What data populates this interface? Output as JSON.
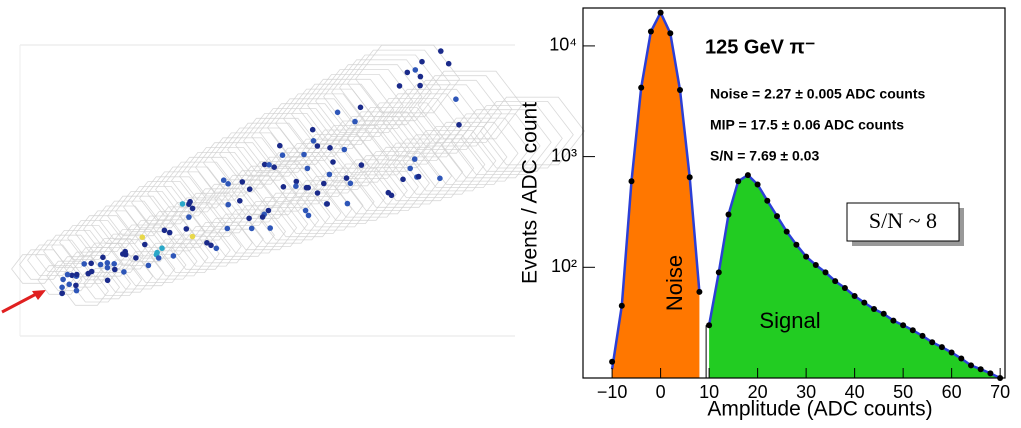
{
  "chart_data": {
    "type": "histogram-fit",
    "title": "125 GeV π⁻",
    "annotations": [
      "Noise = 2.27 ± 0.005 ADC counts",
      "MIP = 17.5 ± 0.06 ADC counts",
      "S/N = 7.69 ± 0.03"
    ],
    "box_label": "S/N ~ 8",
    "x_label": "Amplitude (ADC counts)",
    "y_label": "Events / ADC count",
    "log_y": true,
    "xlim": [
      -16,
      71
    ],
    "ylim": [
      10,
      22000
    ],
    "xticks": [
      {
        "value": -10,
        "label": "−10"
      },
      0,
      10,
      20,
      30,
      40,
      50,
      60,
      70
    ],
    "yticks": [
      {
        "value": 100,
        "label": "10²"
      },
      {
        "value": 1000,
        "label": "10³"
      },
      {
        "value": 10000,
        "label": "10⁴"
      }
    ],
    "point_color": "#000000",
    "line_color": "#2b3fd6",
    "points": {
      "x": [
        -10,
        -8,
        -6,
        -4,
        -2,
        0,
        2,
        4,
        6,
        8,
        10,
        12,
        14,
        16,
        18,
        20,
        22,
        24,
        26,
        28,
        30,
        32,
        34,
        36,
        38,
        40,
        42,
        44,
        46,
        48,
        50,
        52,
        54,
        56,
        58,
        60,
        62,
        64,
        66,
        68,
        70
      ],
      "values": [
        14,
        45,
        600,
        4200,
        13500,
        20000,
        13000,
        4000,
        650,
        60,
        30,
        90,
        300,
        600,
        680,
        560,
        400,
        290,
        210,
        160,
        125,
        105,
        90,
        75,
        65,
        55,
        48,
        42,
        38,
        33,
        30,
        27,
        24,
        21,
        19,
        17,
        15,
        13,
        12,
        11,
        10
      ]
    },
    "regions": [
      {
        "name": "Noise",
        "color": "#ff7700",
        "x": [
          -10,
          -8,
          -6,
          -4,
          -2,
          0,
          2,
          4,
          6,
          8
        ],
        "values": [
          12,
          45,
          600,
          4200,
          13500,
          20000,
          13000,
          4000,
          650,
          60
        ]
      },
      {
        "name": "Signal",
        "color": "#22cc22",
        "x": [
          10,
          12,
          14,
          16,
          18,
          20,
          22,
          24,
          26,
          28,
          30,
          32,
          34,
          36,
          38,
          40,
          42,
          44,
          46,
          48,
          50,
          52,
          54,
          56,
          58,
          60,
          62,
          64,
          66,
          68,
          70
        ],
        "values": [
          30,
          90,
          300,
          600,
          680,
          560,
          400,
          290,
          210,
          160,
          125,
          105,
          90,
          75,
          65,
          55,
          48,
          42,
          38,
          33,
          30,
          27,
          24,
          21,
          19,
          17,
          15,
          13,
          12,
          11,
          10
        ]
      }
    ]
  }
}
